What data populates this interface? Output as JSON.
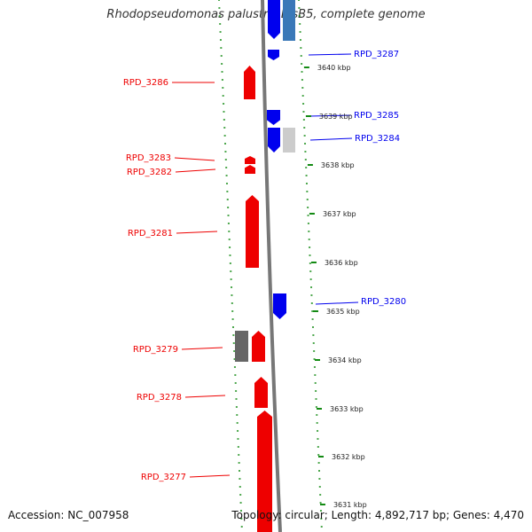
{
  "title": "Rhodopseudomonas palustris BisB5, complete genome",
  "footer": {
    "accession": "Accession: NC_007958",
    "summary": "Topology: circular; Length: 4,892,717 bp; Genes: 4,470"
  },
  "colors": {
    "forward_gene": "#ee0000",
    "reverse_gene": "#0000ee",
    "other_gene_dark": "#666666",
    "other_gene_light": "#cccccc",
    "other_gene_blue": "#3a78b8",
    "backbone": "#777777",
    "scale_ticks": "#138a13"
  },
  "scale_labels": [
    "3640 kbp",
    "3639 kbp",
    "3638 kbp",
    "3637 kbp",
    "3636 kbp",
    "3635 kbp",
    "3634 kbp",
    "3633 kbp",
    "3632 kbp",
    "3631 kbp"
  ],
  "left_genes": [
    "RPD_3286",
    "RPD_3283",
    "RPD_3282",
    "RPD_3281",
    "RPD_3279",
    "RPD_3278",
    "RPD_3277"
  ],
  "right_genes": [
    "RPD_3287",
    "RPD_3285",
    "RPD_3284",
    "RPD_3280"
  ]
}
